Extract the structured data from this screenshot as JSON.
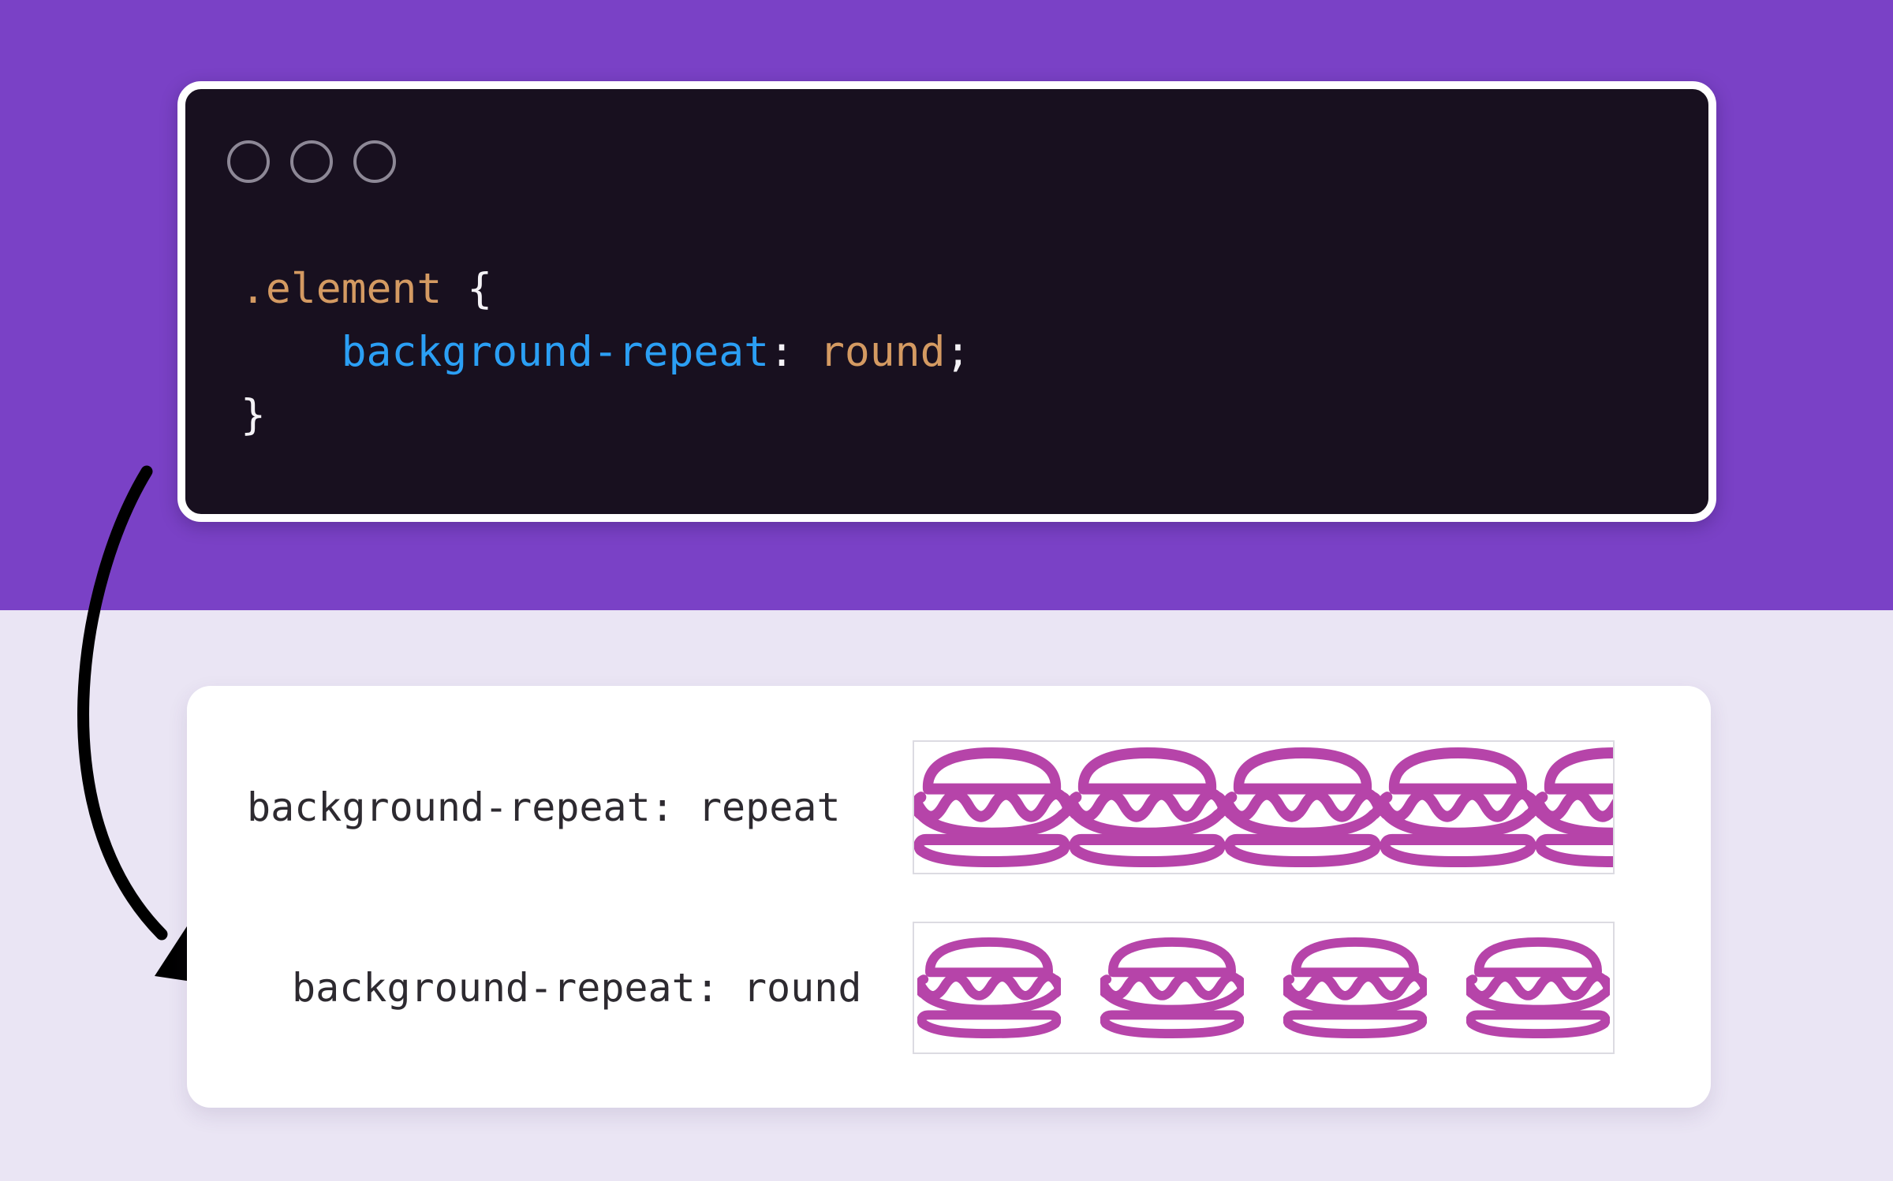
{
  "colors": {
    "hero_purple": "#7a41c6",
    "page_lavender": "#eae5f4",
    "window_bg": "#18101f",
    "window_border": "#ffffff",
    "traffic_light_stroke": "#8d8896",
    "arrow_black": "#000000",
    "burger_magenta": "#b644a9",
    "pattern_box_border": "#dcdbe2",
    "label_text": "#2d2a30",
    "syntax": {
      "selector": "#d49a62",
      "property": "#2b9ff4",
      "value": "#d49a62",
      "punct": "#f4f2f6",
      "plain": "#f4f2f6"
    }
  },
  "code_window": {
    "traffic_lights": [
      "window-control-circle",
      "window-control-circle",
      "window-control-circle"
    ],
    "lines": [
      {
        "tokens": [
          {
            "text": ".element ",
            "type": "selector"
          },
          {
            "text": "{",
            "type": "punct"
          }
        ]
      },
      {
        "tokens": [
          {
            "text": "    ",
            "type": "plain"
          },
          {
            "text": "background-repeat",
            "type": "property"
          },
          {
            "text": ":",
            "type": "punct"
          },
          {
            "text": " ",
            "type": "plain"
          },
          {
            "text": "round",
            "type": "value"
          },
          {
            "text": ";",
            "type": "punct"
          }
        ]
      },
      {
        "tokens": [
          {
            "text": "}",
            "type": "punct"
          }
        ]
      }
    ]
  },
  "demo_card": {
    "rows": [
      {
        "label": "background-repeat: repeat",
        "mode": "repeat",
        "burger_count": 5
      },
      {
        "label": "background-repeat: round",
        "mode": "round",
        "burger_count": 4
      }
    ]
  }
}
